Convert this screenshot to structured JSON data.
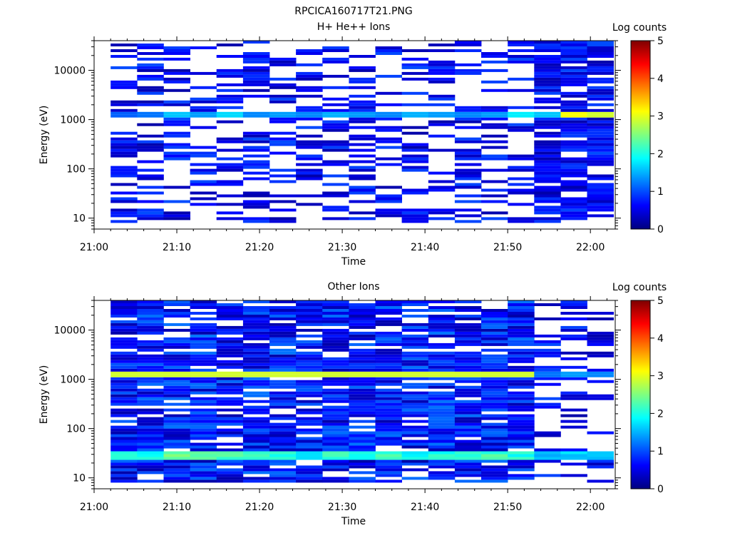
{
  "figure_title": "RPCICA160717T21.PNG",
  "colorscale": [
    "#00007f",
    "#0000ff",
    "#007fff",
    "#00ffff",
    "#7fff7f",
    "#ffff00",
    "#ff7f00",
    "#ff0000",
    "#7f0000"
  ],
  "chart_data": [
    {
      "type": "heatmap",
      "title": "H+ He++ Ions",
      "xlabel": "Time",
      "ylabel": "Energy (eV)",
      "x_ticks": [
        "21:00",
        "21:10",
        "21:20",
        "21:30",
        "21:40",
        "21:50",
        "22:00"
      ],
      "x_range": [
        "21:00",
        "22:03"
      ],
      "y_scale": "log",
      "y_ticks": [
        "10",
        "100",
        "1000",
        "10000"
      ],
      "y_range": [
        6,
        40000
      ],
      "data_start_time": "21:02",
      "sweep_minutes": 3.2,
      "n_sweeps": 19,
      "band_energy_ev": 1230,
      "band_values": [
        1.1,
        1.2,
        1.6,
        1.4,
        1.7,
        1.3,
        1.4,
        1.3,
        1.5,
        1.4,
        1.3,
        1.5,
        1.4,
        1.3,
        1.4,
        1.8,
        1.6,
        3.1,
        2.9
      ],
      "colorbar": {
        "label": "Log counts",
        "ticks": [
          "0",
          "1",
          "2",
          "3",
          "4",
          "5"
        ],
        "range": [
          0,
          5
        ]
      }
    },
    {
      "type": "heatmap",
      "title": "Other Ions",
      "xlabel": "Time",
      "ylabel": "Energy (eV)",
      "x_ticks": [
        "21:00",
        "21:10",
        "21:20",
        "21:30",
        "21:40",
        "21:50",
        "22:00"
      ],
      "x_range": [
        "21:00",
        "22:03"
      ],
      "y_scale": "log",
      "y_ticks": [
        "10",
        "100",
        "1000",
        "10000"
      ],
      "y_range": [
        6,
        40000
      ],
      "data_start_time": "21:02",
      "sweep_minutes": 3.2,
      "n_sweeps": 19,
      "band_energy_ev": 1230,
      "band_values": [
        2.9,
        2.9,
        2.9,
        2.9,
        2.9,
        2.9,
        2.9,
        2.9,
        2.9,
        2.9,
        2.9,
        2.9,
        2.9,
        2.9,
        2.9,
        2.9,
        1.2,
        1.4,
        1.3
      ],
      "low_band_energy_ev": 30,
      "low_band_values": [
        2.0,
        1.9,
        2.3,
        2.2,
        2.3,
        2.1,
        2.0,
        1.9,
        2.1,
        2.0,
        2.2,
        1.9,
        2.0,
        2.1,
        2.2,
        2.0,
        1.5,
        1.7,
        1.6
      ],
      "colorbar": {
        "label": "Log counts",
        "ticks": [
          "0",
          "1",
          "2",
          "3",
          "4",
          "5"
        ],
        "range": [
          0,
          5
        ]
      }
    }
  ]
}
